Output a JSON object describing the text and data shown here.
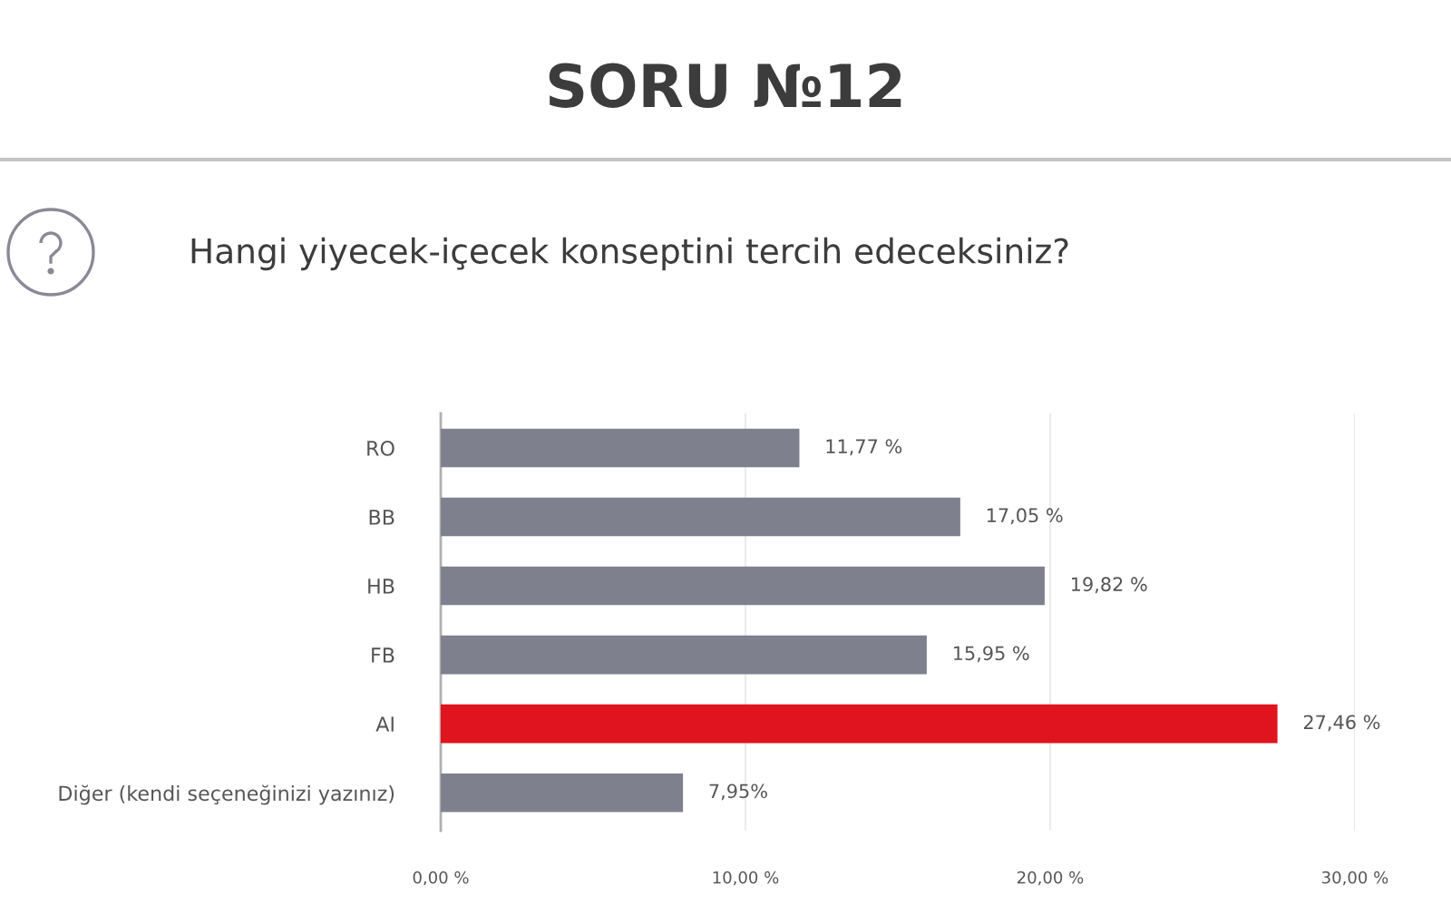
{
  "chart_data": {
    "type": "bar",
    "orientation": "horizontal",
    "title": "SORU №12",
    "subtitle": "Hangi yiyecek-içecek konseptini tercih edeceksiniz?",
    "categories": [
      "RO",
      "BB",
      "HB",
      "FB",
      "AI",
      "Diğer (kendi seçeneğinizi yazınız)"
    ],
    "values": [
      11.77,
      17.05,
      19.82,
      15.95,
      27.46,
      7.95
    ],
    "colors": [
      "#7e808e",
      "#7e808e",
      "#7e808e",
      "#7e808e",
      "#e0141e",
      "#7e808e"
    ],
    "value_labels": [
      "11,77 %",
      "17,05 %",
      "19,82 %",
      "15,95 %",
      "27,46 %",
      "7,95%"
    ],
    "xlim": [
      0,
      30
    ],
    "xticks": [
      {
        "value": 0,
        "label": "0,00 %"
      },
      {
        "value": 10,
        "label": "10,00 %"
      },
      {
        "value": 20,
        "label": "20,00 %"
      },
      {
        "value": 30,
        "label": "30,00 %"
      }
    ],
    "grid": "x"
  }
}
